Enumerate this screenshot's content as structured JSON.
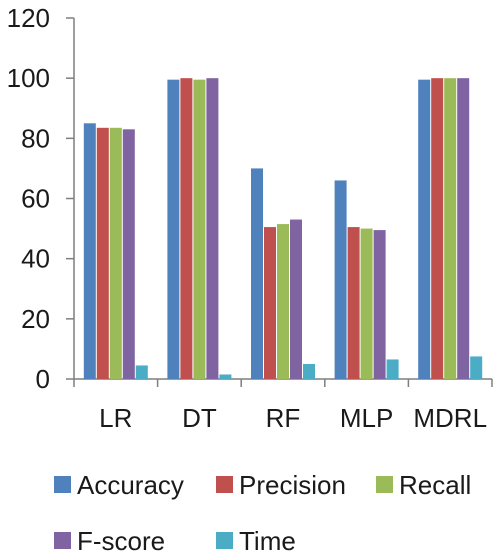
{
  "chart_data": {
    "type": "bar",
    "title": "",
    "xlabel": "",
    "ylabel": "",
    "ylim": [
      0,
      120
    ],
    "yticks": [
      0,
      20,
      40,
      60,
      80,
      100,
      120
    ],
    "grid": false,
    "legend_position": "bottom",
    "categories": [
      "LR",
      "DT",
      "RF",
      "MLP",
      "MDRL"
    ],
    "series": [
      {
        "name": "Accuracy",
        "color": "#4f81bd",
        "values": [
          85,
          99.5,
          70,
          66,
          99.5
        ]
      },
      {
        "name": "Precision",
        "color": "#c0504d",
        "values": [
          83.5,
          100,
          50.5,
          50.5,
          100
        ]
      },
      {
        "name": "Recall",
        "color": "#9bbb59",
        "values": [
          83.5,
          99.5,
          51.5,
          50,
          100
        ]
      },
      {
        "name": "F-score",
        "color": "#8064a2",
        "values": [
          83,
          100,
          53,
          49.5,
          100
        ]
      },
      {
        "name": "Time",
        "color": "#4bacc6",
        "values": [
          4.5,
          1.5,
          5,
          6.5,
          7.5
        ]
      }
    ]
  }
}
